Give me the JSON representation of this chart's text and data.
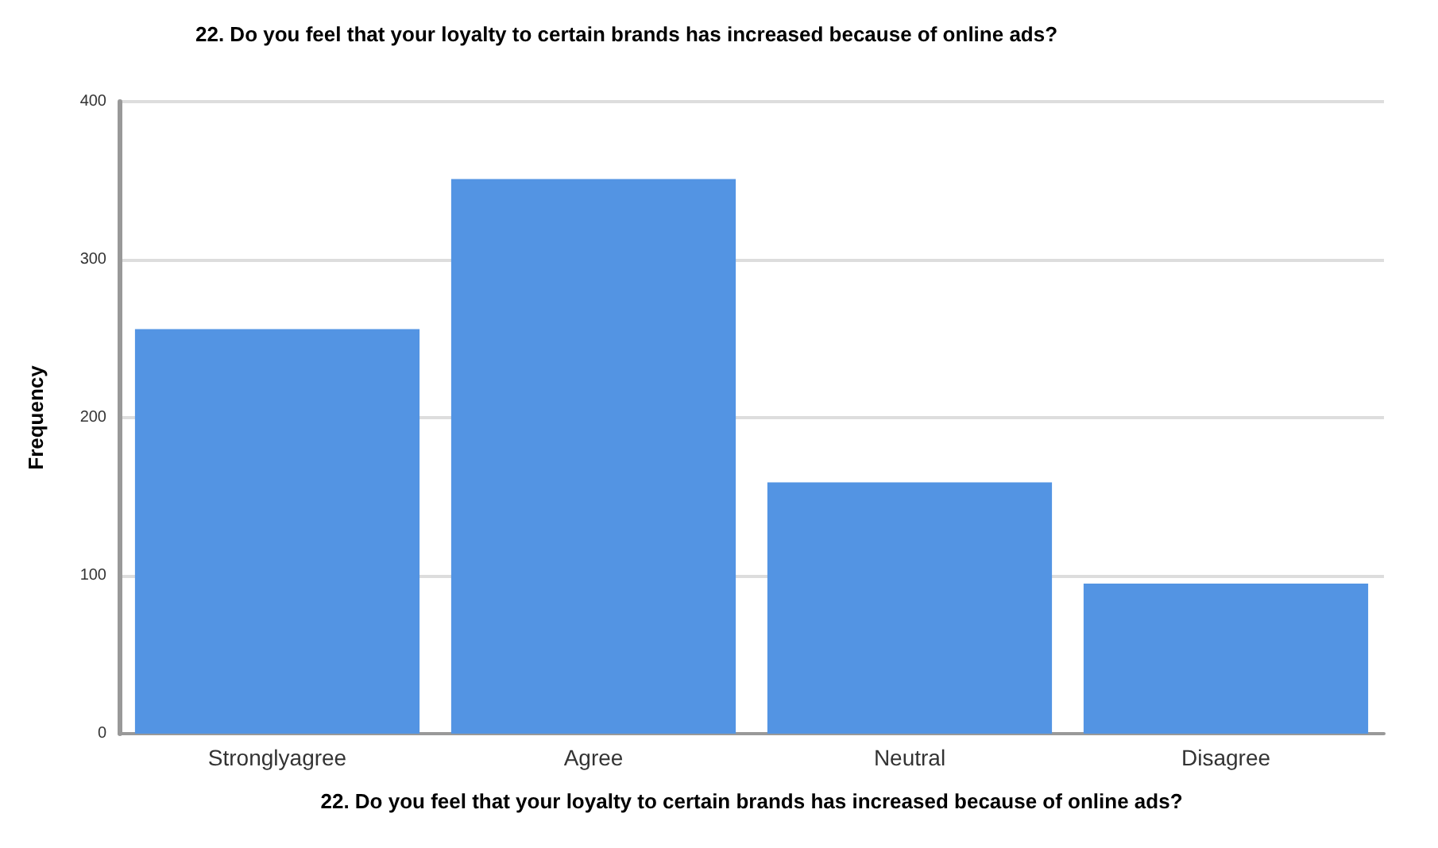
{
  "chart_data": {
    "type": "bar",
    "title": "22. Do you feel that your loyalty to certain brands has increased because of online ads?",
    "xlabel": "22. Do you feel that your loyalty to certain brands has increased because of online ads?",
    "ylabel": "Frequency",
    "categories": [
      "Stronglyagree",
      "Agree",
      "Neutral",
      "Disagree"
    ],
    "values": [
      256,
      351,
      159,
      95
    ],
    "color": "#5394e3",
    "ylim": [
      0,
      400
    ],
    "yticks": [
      0,
      100,
      200,
      300,
      400
    ],
    "grid": "y"
  }
}
